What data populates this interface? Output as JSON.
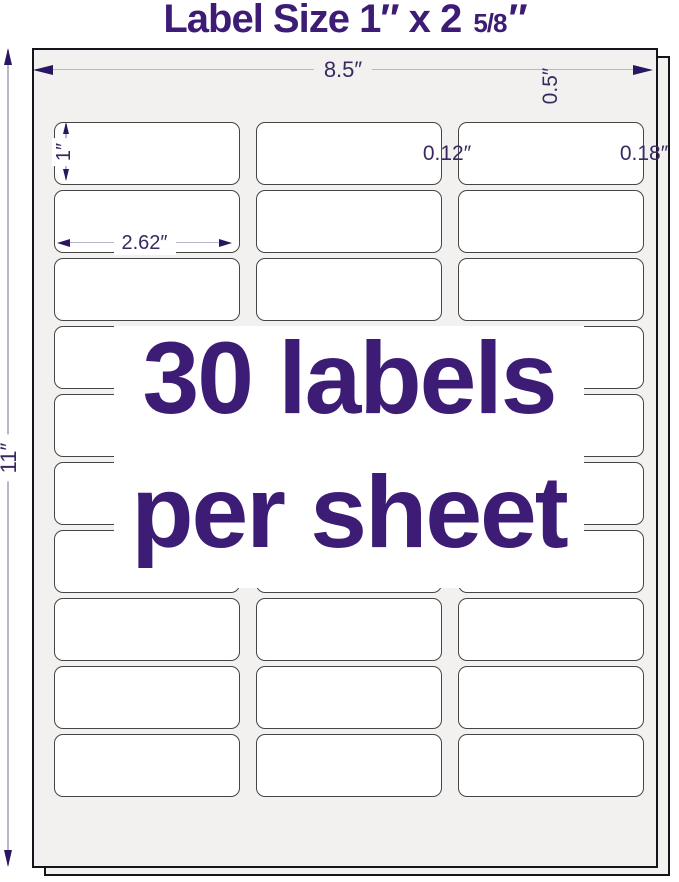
{
  "title": {
    "main": "Label Size 1″ x 2 ",
    "fraction": "5/8",
    "inch_mark": "″"
  },
  "sheet": {
    "grid_rows": 10,
    "grid_columns": 3,
    "labels_total": 30
  },
  "overlay": {
    "line1": "30 labels",
    "line2": "per sheet"
  },
  "dimensions": {
    "sheet_width": "8.5″",
    "sheet_height": "11″",
    "top_margin": "0.5″",
    "label_height": "1″",
    "label_width": "2.62″",
    "column_gap": "0.12″",
    "edge_margin": "0.18″"
  },
  "colors": {
    "purple": "#3D1C76",
    "arrow": "#2A1560",
    "dim-text": "#39295E",
    "dim-line": "#B8B6CF",
    "sheet-fill": "#F2F1F0",
    "sheet-border": "#14141B",
    "label-border": "#454545"
  }
}
